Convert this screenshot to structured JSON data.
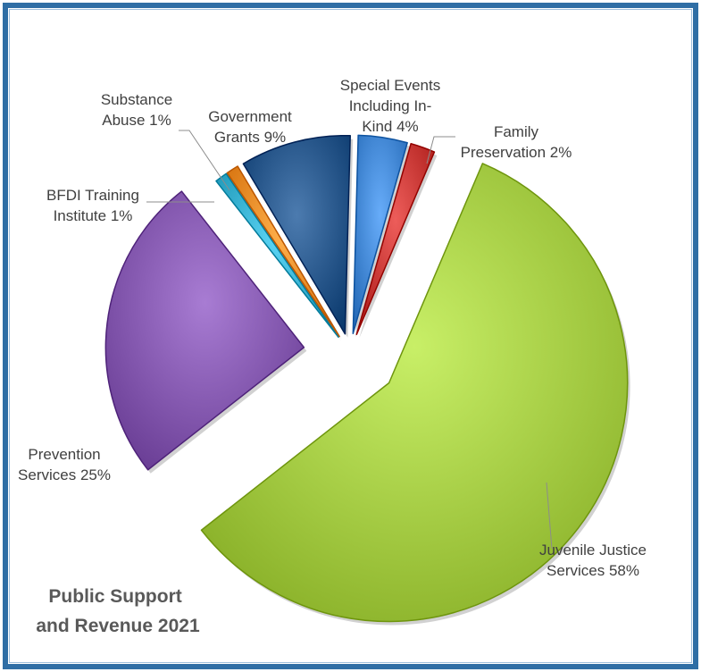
{
  "chart_data": {
    "type": "pie",
    "title": [
      "Public Support",
      "and Revenue 2021"
    ],
    "slices": [
      {
        "label": [
          "Special Events",
          "Including In-",
          "Kind  4%"
        ],
        "value": 4,
        "color": "#3a7fcc"
      },
      {
        "label": [
          "Family",
          "Preservation 2%"
        ],
        "value": 2,
        "color": "#c0302d"
      },
      {
        "label": [
          "Juvenile Justice",
          "Services 58%"
        ],
        "value": 58,
        "color": "#9bc23a"
      },
      {
        "label": [
          "Prevention",
          "Services 25%"
        ],
        "value": 25,
        "color": "#7b4fa6"
      },
      {
        "label": [
          "BFDI Training",
          "Institute 1%"
        ],
        "value": 1,
        "color": "#2fa8c8"
      },
      {
        "label": [
          "Substance",
          "Abuse 1%"
        ],
        "value": 1,
        "color": "#e8831f"
      },
      {
        "label": [
          "Government",
          "Grants 9%"
        ],
        "value": 9,
        "color": "#1f4e82"
      }
    ]
  }
}
